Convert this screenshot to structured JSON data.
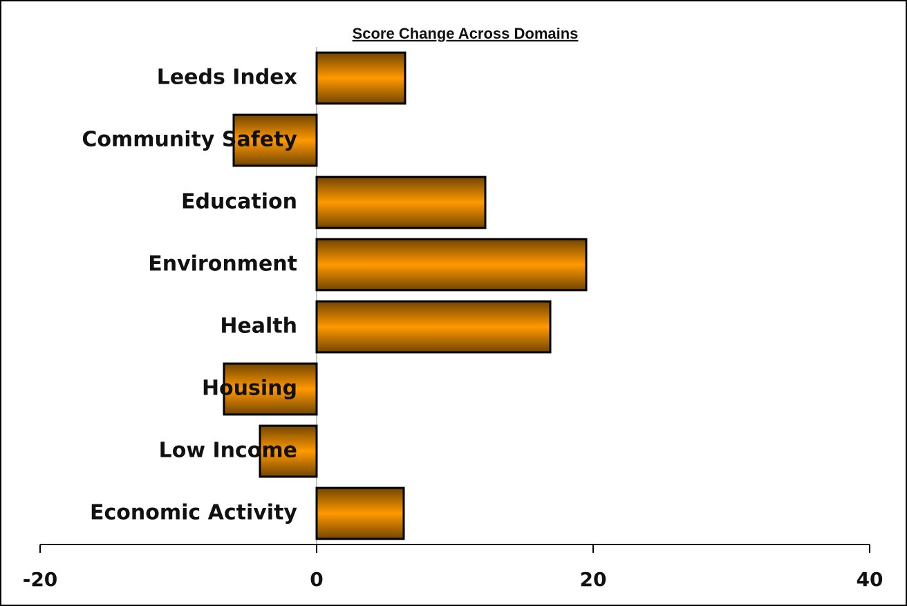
{
  "chart_data": {
    "type": "barh",
    "title": "Score Change Across Domains",
    "categories": [
      "Leeds Index",
      "Community Safety",
      "Education",
      "Environment",
      "Health",
      "Housing",
      "Low Income",
      "Economic Activity"
    ],
    "values": [
      6.4,
      -6,
      12.2,
      19.5,
      16.9,
      -6.7,
      -4.1,
      6.3
    ],
    "color": "#ff9900",
    "xlim": [
      -20,
      40
    ],
    "xticks": [
      -20,
      0,
      20,
      40
    ]
  }
}
